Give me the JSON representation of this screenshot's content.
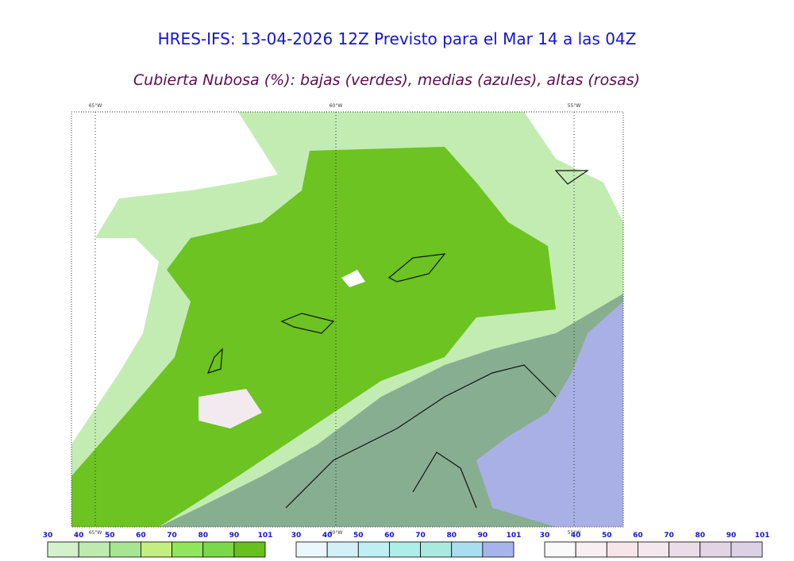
{
  "header": {
    "title": "HRES-IFS: 13-04-2026 12Z Previsto para el Mar 14 a las 04Z",
    "subtitle": "Cubierta Nubosa (%): bajas (verdes), medias (azules), altas (rosas)"
  },
  "map": {
    "longitudes": [
      "65°W",
      "60°W",
      "55°W"
    ]
  },
  "colorbars": [
    {
      "ticks": [
        30,
        40,
        50,
        60,
        70,
        80,
        90,
        101
      ],
      "colors": [
        "#d3f1cb",
        "#bdebaf",
        "#a6e592",
        "#c3ef80",
        "#8fe65a",
        "#7bd848",
        "#67c01b"
      ]
    },
    {
      "ticks": [
        30,
        40,
        50,
        60,
        70,
        80,
        90,
        101
      ],
      "colors": [
        "#eaf7fb",
        "#d2f1f6",
        "#bdeff3",
        "#aceee9",
        "#a9e9e0",
        "#a8def0",
        "#a5b5ec"
      ]
    },
    {
      "ticks": [
        30,
        40,
        50,
        60,
        70,
        80,
        90,
        101
      ],
      "colors": [
        "#fbfafb",
        "#f8eff2",
        "#f6e6ea",
        "#f3e8ed",
        "#e9dde7",
        "#e1d5e5",
        "#dcd0e4"
      ]
    }
  ]
}
